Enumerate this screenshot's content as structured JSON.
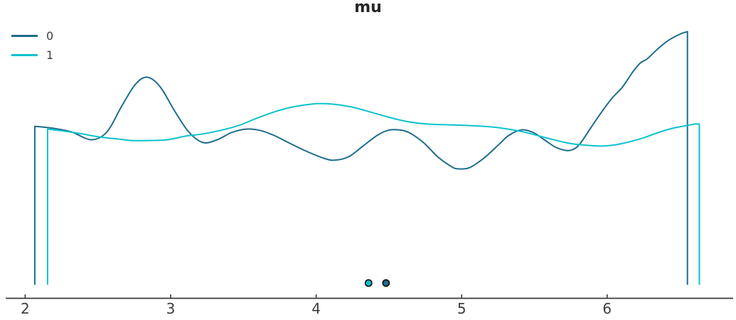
{
  "title": "mu",
  "legend": {
    "items": [
      {
        "label": "0",
        "color": "#1d6d8c"
      },
      {
        "label": "1",
        "color": "#0ec2cd"
      }
    ]
  },
  "colors": {
    "background": "#ffffff",
    "axis": "#3a3a3a",
    "tick_text": "#3d3d3d",
    "title_text": "#262626",
    "marker_edge": "#0a0a0a"
  },
  "chart_data": {
    "type": "line",
    "subtype": "kde-density",
    "title": "mu",
    "xlabel": "",
    "ylabel": "",
    "grid": false,
    "legend_position": "upper-left",
    "xlim": [
      1.87,
      6.87
    ],
    "x_ticks": [
      2,
      3,
      4,
      5,
      6
    ],
    "y_is_density": true,
    "series": [
      {
        "name": "0",
        "color": "#1d6d8c",
        "marker_x": 4.48,
        "points": [
          [
            2.066,
            0.626
          ],
          [
            2.196,
            0.618
          ],
          [
            2.318,
            0.604
          ],
          [
            2.455,
            0.573
          ],
          [
            2.562,
            0.604
          ],
          [
            2.66,
            0.702
          ],
          [
            2.758,
            0.792
          ],
          [
            2.841,
            0.82
          ],
          [
            2.929,
            0.781
          ],
          [
            3.026,
            0.688
          ],
          [
            3.124,
            0.604
          ],
          [
            3.222,
            0.562
          ],
          [
            3.32,
            0.573
          ],
          [
            3.417,
            0.601
          ],
          [
            3.515,
            0.615
          ],
          [
            3.613,
            0.61
          ],
          [
            3.711,
            0.59
          ],
          [
            3.808,
            0.562
          ],
          [
            3.931,
            0.528
          ],
          [
            4.053,
            0.5
          ],
          [
            4.126,
            0.492
          ],
          [
            4.224,
            0.506
          ],
          [
            4.322,
            0.548
          ],
          [
            4.419,
            0.59
          ],
          [
            4.493,
            0.61
          ],
          [
            4.566,
            0.612
          ],
          [
            4.639,
            0.601
          ],
          [
            4.737,
            0.562
          ],
          [
            4.835,
            0.506
          ],
          [
            4.933,
            0.466
          ],
          [
            4.981,
            0.458
          ],
          [
            5.055,
            0.463
          ],
          [
            5.152,
            0.5
          ],
          [
            5.25,
            0.551
          ],
          [
            5.323,
            0.59
          ],
          [
            5.411,
            0.612
          ],
          [
            5.494,
            0.601
          ],
          [
            5.568,
            0.573
          ],
          [
            5.641,
            0.545
          ],
          [
            5.714,
            0.531
          ],
          [
            5.763,
            0.534
          ],
          [
            5.812,
            0.556
          ],
          [
            5.885,
            0.618
          ],
          [
            5.959,
            0.68
          ],
          [
            6.032,
            0.736
          ],
          [
            6.105,
            0.781
          ],
          [
            6.179,
            0.843
          ],
          [
            6.228,
            0.876
          ],
          [
            6.276,
            0.893
          ],
          [
            6.35,
            0.933
          ],
          [
            6.423,
            0.966
          ],
          [
            6.5,
            0.99
          ],
          [
            6.552,
            1.0
          ]
        ]
      },
      {
        "name": "1",
        "color": "#0ec2cd",
        "marker_x": 4.36,
        "points": [
          [
            2.154,
            0.615
          ],
          [
            2.269,
            0.607
          ],
          [
            2.391,
            0.596
          ],
          [
            2.513,
            0.584
          ],
          [
            2.635,
            0.576
          ],
          [
            2.733,
            0.57
          ],
          [
            2.855,
            0.57
          ],
          [
            2.978,
            0.573
          ],
          [
            3.1,
            0.587
          ],
          [
            3.222,
            0.596
          ],
          [
            3.344,
            0.61
          ],
          [
            3.466,
            0.629
          ],
          [
            3.588,
            0.657
          ],
          [
            3.711,
            0.683
          ],
          [
            3.833,
            0.702
          ],
          [
            3.955,
            0.713
          ],
          [
            4.028,
            0.716
          ],
          [
            4.126,
            0.713
          ],
          [
            4.248,
            0.702
          ],
          [
            4.37,
            0.683
          ],
          [
            4.493,
            0.663
          ],
          [
            4.615,
            0.646
          ],
          [
            4.761,
            0.635
          ],
          [
            4.908,
            0.632
          ],
          [
            5.055,
            0.629
          ],
          [
            5.201,
            0.624
          ],
          [
            5.323,
            0.615
          ],
          [
            5.446,
            0.601
          ],
          [
            5.592,
            0.579
          ],
          [
            5.739,
            0.559
          ],
          [
            5.861,
            0.551
          ],
          [
            5.959,
            0.548
          ],
          [
            6.057,
            0.553
          ],
          [
            6.154,
            0.565
          ],
          [
            6.252,
            0.581
          ],
          [
            6.35,
            0.601
          ],
          [
            6.447,
            0.618
          ],
          [
            6.545,
            0.629
          ],
          [
            6.604,
            0.635
          ],
          [
            6.634,
            0.635
          ]
        ]
      }
    ]
  }
}
